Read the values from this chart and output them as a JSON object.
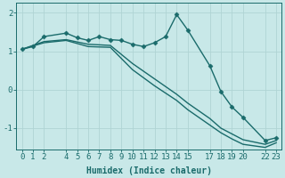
{
  "xlabel": "Humidex (Indice chaleur)",
  "ylabel": "",
  "background_color": "#c8e8e8",
  "grid_color": "#b0d4d4",
  "line_color": "#1a6b6b",
  "xlim": [
    -0.5,
    23.5
  ],
  "ylim": [
    -1.55,
    2.25
  ],
  "yticks": [
    -1,
    0,
    1,
    2
  ],
  "xticks": [
    0,
    1,
    2,
    4,
    5,
    6,
    7,
    8,
    9,
    10,
    11,
    12,
    13,
    14,
    15,
    17,
    18,
    19,
    20,
    22,
    23
  ],
  "line1_x": [
    0,
    1,
    2,
    4,
    5,
    6,
    7,
    8,
    9,
    10,
    11,
    12,
    13,
    14,
    15,
    17,
    18,
    19,
    20,
    22,
    23
  ],
  "line1_y": [
    1.05,
    1.12,
    1.38,
    1.47,
    1.35,
    1.28,
    1.38,
    1.3,
    1.28,
    1.18,
    1.12,
    1.22,
    1.38,
    1.95,
    1.55,
    0.62,
    -0.05,
    -0.45,
    -0.72,
    -1.32,
    -1.25
  ],
  "line2_x": [
    0,
    2,
    4,
    6,
    8,
    10,
    12,
    14,
    15,
    17,
    18,
    19,
    20,
    22,
    23
  ],
  "line2_y": [
    1.05,
    1.25,
    1.3,
    1.18,
    1.15,
    0.68,
    0.28,
    -0.12,
    -0.35,
    -0.75,
    -1.0,
    -1.15,
    -1.3,
    -1.42,
    -1.32
  ],
  "line3_x": [
    0,
    2,
    4,
    6,
    8,
    10,
    12,
    14,
    15,
    17,
    18,
    19,
    20,
    22,
    23
  ],
  "line3_y": [
    1.05,
    1.22,
    1.28,
    1.12,
    1.1,
    0.52,
    0.1,
    -0.28,
    -0.52,
    -0.92,
    -1.12,
    -1.28,
    -1.42,
    -1.5,
    -1.38
  ],
  "marker": "D",
  "marker_size": 2.5,
  "line_width": 1.0,
  "font_size": 6.5,
  "title_font_size": 6.0
}
